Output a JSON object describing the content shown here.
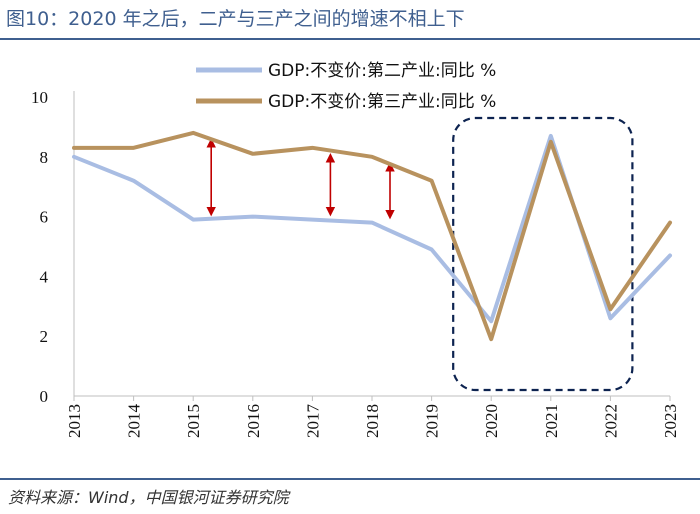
{
  "title": "图10：2020 年之后，二产与三产之间的增速不相上下",
  "source": "资料来源：Wind，中国银河证券研究院",
  "chart_data": {
    "type": "line",
    "categories": [
      "2013",
      "2014",
      "2015",
      "2016",
      "2017",
      "2018",
      "2019",
      "2020",
      "2021",
      "2022",
      "2023"
    ],
    "series": [
      {
        "name": "GDP:不变价:第二产业:同比 %",
        "color": "#a9bde3",
        "values": [
          8.0,
          7.2,
          5.9,
          6.0,
          5.9,
          5.8,
          4.9,
          2.5,
          8.7,
          2.6,
          4.7
        ]
      },
      {
        "name": "GDP:不变价:第三产业:同比 %",
        "color": "#b8925e",
        "values": [
          8.3,
          8.3,
          8.8,
          8.1,
          8.3,
          8.0,
          7.2,
          1.9,
          8.5,
          2.9,
          5.8
        ]
      }
    ],
    "yticks": [
      "0",
      "2",
      "4",
      "6",
      "8",
      "10"
    ],
    "ylim": [
      0,
      10
    ],
    "legend": "top-center",
    "annotations": {
      "gap_arrows_at": [
        "2015",
        "2017",
        "2018"
      ],
      "arrow_color": "#c00000",
      "highlight_box_over": [
        "2020",
        "2021",
        "2022"
      ],
      "box_color": "#0d2350"
    }
  }
}
